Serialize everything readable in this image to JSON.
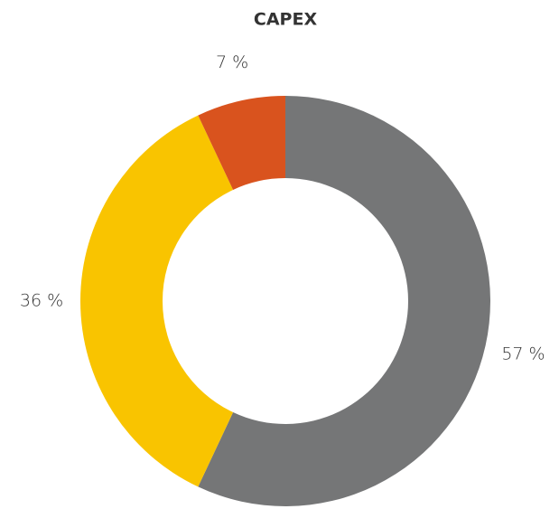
{
  "chart_data": {
    "type": "donut",
    "title": "CAPEX",
    "values": [
      57,
      36,
      7
    ],
    "value_labels": [
      "57 %",
      "36 %",
      "7 %"
    ],
    "colors": [
      "#757677",
      "#f9c400",
      "#d9531e"
    ]
  }
}
